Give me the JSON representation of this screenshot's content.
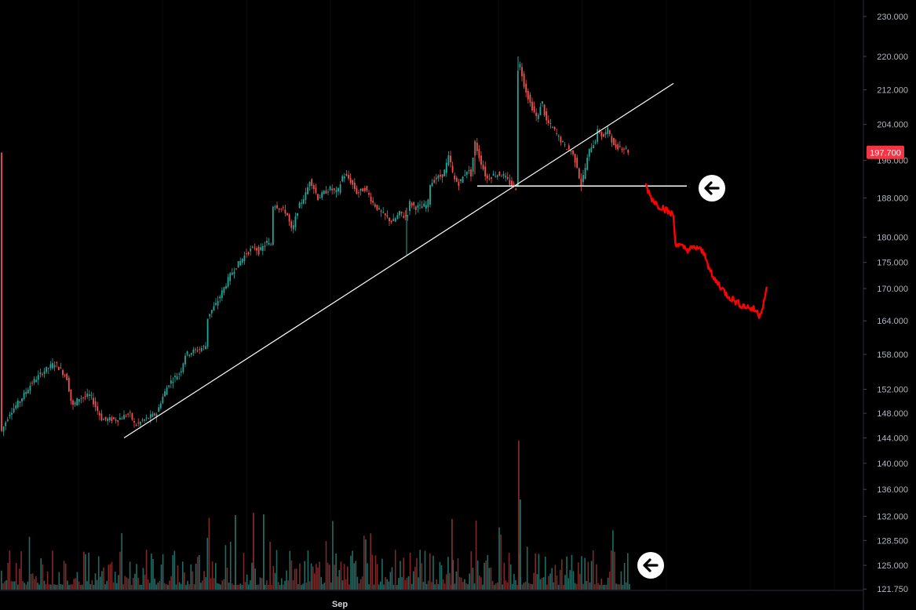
{
  "chart_data": {
    "type": "candlestick",
    "title": "",
    "xlabel": "",
    "ylabel": "",
    "x_axis": {
      "tick_labels": [
        "Sep"
      ]
    },
    "y_axis": {
      "scale": "log",
      "ylim": [
        121.75,
        232
      ],
      "tick_labels": [
        "230.000",
        "220.000",
        "212.000",
        "204.000",
        "196.000",
        "188.000",
        "180.000",
        "175.000",
        "170.000",
        "164.000",
        "158.000",
        "152.000",
        "148.000",
        "144.000",
        "140.000",
        "136.000",
        "132.000",
        "128.500",
        "125.000",
        "121.750"
      ]
    },
    "last_price": {
      "label": "197.700",
      "value": 197.7,
      "color": "#f23645"
    },
    "colors": {
      "up": "#26a69a",
      "down": "#ef5350",
      "projection": "#ff0000",
      "lines": "#ffffff",
      "background": "#000000"
    },
    "price_path": [
      [
        0,
        144.5
      ],
      [
        12,
        148
      ],
      [
        25,
        150
      ],
      [
        40,
        153
      ],
      [
        55,
        155
      ],
      [
        70,
        156.5
      ],
      [
        85,
        154
      ],
      [
        92,
        149
      ],
      [
        100,
        150.5
      ],
      [
        115,
        151
      ],
      [
        122,
        149
      ],
      [
        130,
        147
      ],
      [
        150,
        147
      ],
      [
        165,
        148
      ],
      [
        172,
        146
      ],
      [
        185,
        147
      ],
      [
        200,
        148
      ],
      [
        205,
        150
      ],
      [
        215,
        153
      ],
      [
        230,
        155
      ],
      [
        236,
        158
      ],
      [
        255,
        159
      ],
      [
        262,
        159.5
      ],
      [
        263,
        163
      ],
      [
        265,
        165
      ],
      [
        275,
        167
      ],
      [
        285,
        170
      ],
      [
        295,
        173
      ],
      [
        305,
        175
      ],
      [
        315,
        177
      ],
      [
        325,
        178
      ],
      [
        330,
        177
      ],
      [
        340,
        179
      ],
      [
        345,
        178
      ],
      [
        348,
        187
      ],
      [
        355,
        186
      ],
      [
        365,
        185
      ],
      [
        372,
        181
      ],
      [
        380,
        186
      ],
      [
        390,
        189
      ],
      [
        395,
        192
      ],
      [
        405,
        188
      ],
      [
        420,
        190
      ],
      [
        430,
        189
      ],
      [
        437,
        193
      ],
      [
        445,
        192
      ],
      [
        455,
        189
      ],
      [
        465,
        190
      ],
      [
        475,
        187
      ],
      [
        485,
        185
      ],
      [
        500,
        183
      ],
      [
        510,
        185
      ],
      [
        515,
        184
      ],
      [
        520,
        185
      ],
      [
        522,
        187
      ],
      [
        530,
        186
      ],
      [
        545,
        186.5
      ],
      [
        548,
        191
      ],
      [
        555,
        192
      ],
      [
        565,
        193
      ],
      [
        572,
        197
      ],
      [
        578,
        192
      ],
      [
        585,
        191
      ],
      [
        595,
        194
      ],
      [
        600,
        193
      ],
      [
        605,
        200
      ],
      [
        610,
        197
      ],
      [
        620,
        192
      ],
      [
        630,
        193
      ],
      [
        640,
        193
      ],
      [
        650,
        191
      ],
      [
        658,
        190
      ],
      [
        660,
        220
      ],
      [
        668,
        213
      ],
      [
        675,
        209
      ],
      [
        685,
        205
      ],
      [
        690,
        210
      ],
      [
        695,
        205
      ],
      [
        705,
        203
      ],
      [
        712,
        201
      ],
      [
        720,
        199
      ],
      [
        728,
        198
      ],
      [
        735,
        195
      ],
      [
        740,
        190.5
      ],
      [
        745,
        194
      ],
      [
        752,
        199
      ],
      [
        758,
        200
      ],
      [
        762,
        203
      ],
      [
        768,
        201
      ],
      [
        775,
        203
      ],
      [
        782,
        199
      ],
      [
        790,
        199
      ],
      [
        798,
        198.5
      ],
      [
        802,
        197.7
      ]
    ],
    "projection": [
      [
        822,
        191
      ],
      [
        830,
        188
      ],
      [
        838,
        186.5
      ],
      [
        845,
        186
      ],
      [
        852,
        185
      ],
      [
        858,
        184.5
      ],
      [
        860,
        179
      ],
      [
        868,
        178
      ],
      [
        878,
        177.5
      ],
      [
        888,
        178
      ],
      [
        895,
        177
      ],
      [
        900,
        176
      ],
      [
        903,
        174
      ],
      [
        908,
        172
      ],
      [
        915,
        171
      ],
      [
        925,
        169
      ],
      [
        933,
        168
      ],
      [
        943,
        167
      ],
      [
        953,
        166.5
      ],
      [
        962,
        166
      ],
      [
        968,
        165
      ],
      [
        972,
        167
      ],
      [
        977,
        170
      ]
    ],
    "trendline": {
      "from": [
        158,
        144
      ],
      "to": [
        858,
        213.5
      ]
    },
    "support_line": {
      "price": 190.5,
      "from_x": 608,
      "to_x": 875
    },
    "volume_ratio_max": 1
  },
  "markers": {
    "top_arrow_icon": "arrow-left-circle-icon",
    "bottom_arrow_icon": "arrow-left-circle-icon"
  }
}
